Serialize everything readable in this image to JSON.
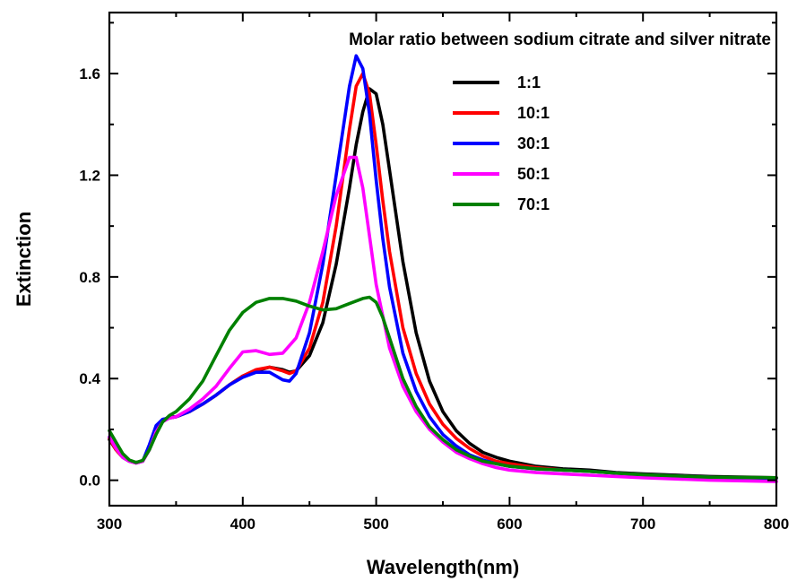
{
  "chart_data": {
    "type": "line",
    "title": "Molar ratio between sodium citrate and silver nitrate",
    "xlabel": "Wavelength(nm)",
    "ylabel": "Extinction",
    "xlim": [
      300,
      800
    ],
    "ylim": [
      -0.1,
      1.84
    ],
    "xticks": [
      300,
      400,
      500,
      600,
      700,
      800
    ],
    "xtick_labels": [
      "300",
      "400",
      "500",
      "600",
      "700",
      "800"
    ],
    "yticks": [
      0.0,
      0.4,
      0.8,
      1.2,
      1.6
    ],
    "ytick_labels": [
      "0.0",
      "0.4",
      "0.8",
      "1.2",
      "1.6"
    ],
    "grid": false,
    "legend_position": "top-right",
    "series": [
      {
        "name": "1:1",
        "color": "#000000",
        "points": [
          [
            300,
            0.16
          ],
          [
            305,
            0.12
          ],
          [
            310,
            0.09
          ],
          [
            315,
            0.075
          ],
          [
            320,
            0.07
          ],
          [
            325,
            0.075
          ],
          [
            330,
            0.12
          ],
          [
            335,
            0.19
          ],
          [
            340,
            0.235
          ],
          [
            345,
            0.25
          ],
          [
            350,
            0.25
          ],
          [
            360,
            0.27
          ],
          [
            370,
            0.3
          ],
          [
            380,
            0.335
          ],
          [
            390,
            0.375
          ],
          [
            400,
            0.41
          ],
          [
            410,
            0.43
          ],
          [
            420,
            0.445
          ],
          [
            430,
            0.435
          ],
          [
            435,
            0.425
          ],
          [
            440,
            0.43
          ],
          [
            450,
            0.49
          ],
          [
            460,
            0.62
          ],
          [
            470,
            0.85
          ],
          [
            480,
            1.15
          ],
          [
            485,
            1.32
          ],
          [
            490,
            1.45
          ],
          [
            495,
            1.54
          ],
          [
            500,
            1.52
          ],
          [
            505,
            1.4
          ],
          [
            510,
            1.22
          ],
          [
            520,
            0.86
          ],
          [
            530,
            0.58
          ],
          [
            540,
            0.39
          ],
          [
            550,
            0.27
          ],
          [
            560,
            0.195
          ],
          [
            570,
            0.145
          ],
          [
            580,
            0.11
          ],
          [
            590,
            0.09
          ],
          [
            600,
            0.075
          ],
          [
            620,
            0.055
          ],
          [
            640,
            0.045
          ],
          [
            660,
            0.04
          ],
          [
            680,
            0.03
          ],
          [
            700,
            0.025
          ],
          [
            750,
            0.015
          ],
          [
            800,
            0.01
          ]
        ]
      },
      {
        "name": "10:1",
        "color": "#ff0000",
        "points": [
          [
            300,
            0.165
          ],
          [
            305,
            0.12
          ],
          [
            310,
            0.09
          ],
          [
            315,
            0.075
          ],
          [
            320,
            0.068
          ],
          [
            325,
            0.075
          ],
          [
            330,
            0.13
          ],
          [
            335,
            0.2
          ],
          [
            340,
            0.235
          ],
          [
            345,
            0.245
          ],
          [
            350,
            0.25
          ],
          [
            360,
            0.27
          ],
          [
            370,
            0.3
          ],
          [
            380,
            0.335
          ],
          [
            390,
            0.375
          ],
          [
            400,
            0.41
          ],
          [
            410,
            0.435
          ],
          [
            420,
            0.445
          ],
          [
            430,
            0.43
          ],
          [
            435,
            0.42
          ],
          [
            440,
            0.43
          ],
          [
            450,
            0.52
          ],
          [
            460,
            0.7
          ],
          [
            470,
            1.0
          ],
          [
            480,
            1.38
          ],
          [
            485,
            1.55
          ],
          [
            490,
            1.6
          ],
          [
            495,
            1.52
          ],
          [
            500,
            1.32
          ],
          [
            505,
            1.1
          ],
          [
            510,
            0.9
          ],
          [
            520,
            0.6
          ],
          [
            530,
            0.42
          ],
          [
            540,
            0.3
          ],
          [
            550,
            0.22
          ],
          [
            560,
            0.165
          ],
          [
            570,
            0.125
          ],
          [
            580,
            0.095
          ],
          [
            590,
            0.075
          ],
          [
            600,
            0.065
          ],
          [
            620,
            0.05
          ],
          [
            640,
            0.04
          ],
          [
            660,
            0.035
          ],
          [
            680,
            0.028
          ],
          [
            700,
            0.022
          ],
          [
            750,
            0.012
          ],
          [
            800,
            0.008
          ]
        ]
      },
      {
        "name": "30:1",
        "color": "#0000ff",
        "points": [
          [
            300,
            0.17
          ],
          [
            305,
            0.13
          ],
          [
            310,
            0.09
          ],
          [
            315,
            0.075
          ],
          [
            320,
            0.068
          ],
          [
            325,
            0.075
          ],
          [
            330,
            0.14
          ],
          [
            335,
            0.215
          ],
          [
            340,
            0.24
          ],
          [
            345,
            0.245
          ],
          [
            350,
            0.25
          ],
          [
            360,
            0.27
          ],
          [
            370,
            0.3
          ],
          [
            380,
            0.335
          ],
          [
            390,
            0.375
          ],
          [
            400,
            0.405
          ],
          [
            410,
            0.425
          ],
          [
            420,
            0.425
          ],
          [
            430,
            0.395
          ],
          [
            435,
            0.39
          ],
          [
            440,
            0.42
          ],
          [
            450,
            0.58
          ],
          [
            460,
            0.85
          ],
          [
            470,
            1.2
          ],
          [
            480,
            1.55
          ],
          [
            485,
            1.67
          ],
          [
            490,
            1.62
          ],
          [
            495,
            1.44
          ],
          [
            500,
            1.18
          ],
          [
            505,
            0.95
          ],
          [
            510,
            0.76
          ],
          [
            520,
            0.5
          ],
          [
            530,
            0.35
          ],
          [
            540,
            0.25
          ],
          [
            550,
            0.18
          ],
          [
            560,
            0.135
          ],
          [
            570,
            0.1
          ],
          [
            580,
            0.08
          ],
          [
            590,
            0.065
          ],
          [
            600,
            0.055
          ],
          [
            620,
            0.045
          ],
          [
            640,
            0.04
          ],
          [
            660,
            0.035
          ],
          [
            680,
            0.028
          ],
          [
            700,
            0.022
          ],
          [
            750,
            0.012
          ],
          [
            800,
            0.008
          ]
        ]
      },
      {
        "name": "50:1",
        "color": "#ff00ff",
        "points": [
          [
            300,
            0.17
          ],
          [
            305,
            0.125
          ],
          [
            310,
            0.09
          ],
          [
            315,
            0.075
          ],
          [
            320,
            0.068
          ],
          [
            325,
            0.075
          ],
          [
            330,
            0.12
          ],
          [
            335,
            0.19
          ],
          [
            340,
            0.23
          ],
          [
            345,
            0.245
          ],
          [
            350,
            0.25
          ],
          [
            360,
            0.28
          ],
          [
            370,
            0.32
          ],
          [
            380,
            0.37
          ],
          [
            390,
            0.44
          ],
          [
            400,
            0.505
          ],
          [
            410,
            0.51
          ],
          [
            420,
            0.495
          ],
          [
            430,
            0.5
          ],
          [
            440,
            0.56
          ],
          [
            450,
            0.7
          ],
          [
            460,
            0.9
          ],
          [
            470,
            1.12
          ],
          [
            480,
            1.27
          ],
          [
            485,
            1.27
          ],
          [
            490,
            1.15
          ],
          [
            495,
            0.96
          ],
          [
            500,
            0.77
          ],
          [
            510,
            0.52
          ],
          [
            520,
            0.37
          ],
          [
            530,
            0.27
          ],
          [
            540,
            0.2
          ],
          [
            550,
            0.15
          ],
          [
            560,
            0.11
          ],
          [
            570,
            0.085
          ],
          [
            580,
            0.065
          ],
          [
            590,
            0.05
          ],
          [
            600,
            0.04
          ],
          [
            620,
            0.03
          ],
          [
            640,
            0.025
          ],
          [
            660,
            0.02
          ],
          [
            680,
            0.015
          ],
          [
            700,
            0.01
          ],
          [
            750,
            0.0
          ],
          [
            800,
            -0.005
          ]
        ]
      },
      {
        "name": "70:1",
        "color": "#008000",
        "points": [
          [
            300,
            0.195
          ],
          [
            305,
            0.15
          ],
          [
            310,
            0.105
          ],
          [
            315,
            0.08
          ],
          [
            320,
            0.07
          ],
          [
            325,
            0.078
          ],
          [
            330,
            0.12
          ],
          [
            335,
            0.18
          ],
          [
            340,
            0.23
          ],
          [
            345,
            0.255
          ],
          [
            350,
            0.27
          ],
          [
            360,
            0.32
          ],
          [
            370,
            0.39
          ],
          [
            380,
            0.49
          ],
          [
            390,
            0.59
          ],
          [
            400,
            0.66
          ],
          [
            410,
            0.7
          ],
          [
            420,
            0.715
          ],
          [
            430,
            0.715
          ],
          [
            440,
            0.705
          ],
          [
            450,
            0.685
          ],
          [
            460,
            0.67
          ],
          [
            470,
            0.675
          ],
          [
            480,
            0.695
          ],
          [
            490,
            0.715
          ],
          [
            495,
            0.72
          ],
          [
            500,
            0.7
          ],
          [
            505,
            0.64
          ],
          [
            510,
            0.56
          ],
          [
            520,
            0.4
          ],
          [
            530,
            0.29
          ],
          [
            540,
            0.21
          ],
          [
            550,
            0.16
          ],
          [
            560,
            0.12
          ],
          [
            570,
            0.095
          ],
          [
            580,
            0.075
          ],
          [
            590,
            0.065
          ],
          [
            600,
            0.055
          ],
          [
            620,
            0.045
          ],
          [
            640,
            0.04
          ],
          [
            660,
            0.035
          ],
          [
            680,
            0.028
          ],
          [
            700,
            0.022
          ],
          [
            750,
            0.012
          ],
          [
            800,
            0.01
          ]
        ]
      }
    ]
  }
}
